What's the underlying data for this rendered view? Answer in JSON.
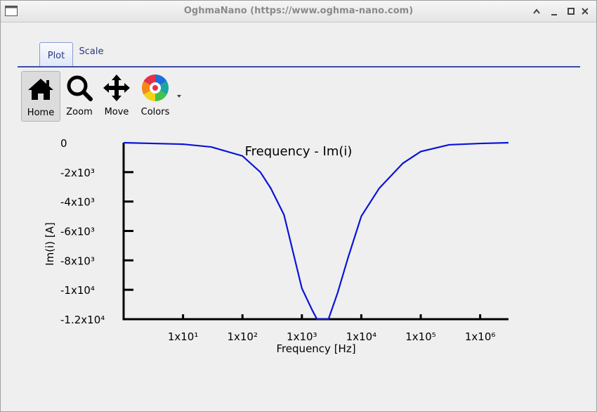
{
  "window": {
    "title": "OghmaNano (https://www.oghma-nano.com)"
  },
  "tabs": [
    "Plot",
    "Scale"
  ],
  "toolbar": [
    "Home",
    "Zoom",
    "Move",
    "Colors"
  ],
  "chart_data": {
    "type": "line",
    "title": "Frequency - Im(i)",
    "x_label": "Frequency [Hz]",
    "y_label": "Im(i) [A]",
    "xscale": "log",
    "xlim": [
      1,
      3000000
    ],
    "xticks": [
      {
        "value": 10,
        "label": "1x10¹"
      },
      {
        "value": 100,
        "label": "1x10²"
      },
      {
        "value": 1000,
        "label": "1x10³"
      },
      {
        "value": 10000,
        "label": "1x10⁴"
      },
      {
        "value": 100000,
        "label": "1x10⁵"
      },
      {
        "value": 1000000,
        "label": "1x10⁶"
      }
    ],
    "ylim": [
      -12000,
      0
    ],
    "yticks": [
      0,
      {
        "value": -2000,
        "label": "-2x10³"
      },
      {
        "value": -4000,
        "label": "-4x10³"
      },
      {
        "value": -6000,
        "label": "-6x10³"
      },
      {
        "value": -8000,
        "label": "-8x10³"
      },
      {
        "value": -10000,
        "label": "-1x10⁴"
      },
      {
        "value": -12000,
        "label": "-1.2x10⁴"
      }
    ],
    "x": [
      1,
      10,
      30,
      100,
      200,
      300,
      500,
      1000,
      1500,
      1800,
      2800,
      4000,
      6000,
      10000,
      20000,
      50000,
      100000,
      300000,
      1000000,
      3000000
    ],
    "series": [
      {
        "name": "Im(i)",
        "color": "#0a14d8",
        "values": [
          0,
          -100,
          -290,
          -900,
          -2000,
          -3100,
          -4900,
          -9900,
          -11400,
          -12000,
          -12000,
          -10200,
          -7800,
          -5000,
          -3100,
          -1400,
          -600,
          -140,
          -50,
          0
        ]
      }
    ]
  }
}
